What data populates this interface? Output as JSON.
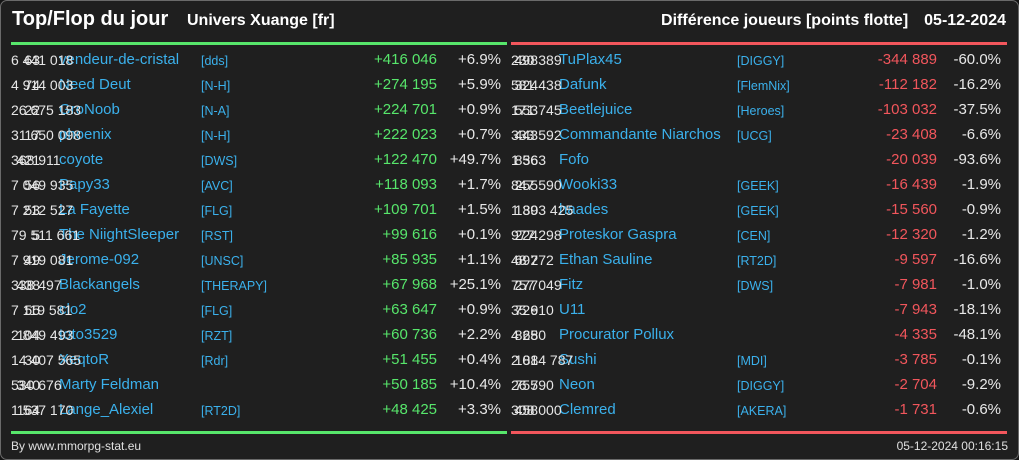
{
  "header": {
    "title": "Top/Flop du jour",
    "universe": "Univers Xuange [fr]",
    "metric": "Différence joueurs [points flotte]",
    "date": "05-12-2024"
  },
  "colors": {
    "top_accent": "#57e66b",
    "flop_accent": "#f2565c"
  },
  "top": [
    {
      "rank": "63",
      "name": "vendeur-de-cristal",
      "alliance": "[dds]",
      "points": "6 441 018",
      "diff": "+416 046",
      "pct": "+6.9%"
    },
    {
      "rank": "74",
      "name": "Need Deut",
      "alliance": "[N-H]",
      "points": "4 914 003",
      "diff": "+274 195",
      "pct": "+5.9%"
    },
    {
      "rank": "22",
      "name": "GroNoob",
      "alliance": "[N-A]",
      "points": "26 675 183",
      "diff": "+224 701",
      "pct": "+0.9%"
    },
    {
      "rank": "17",
      "name": "phoenix",
      "alliance": "[N-H]",
      "points": "31 650 098",
      "diff": "+222 023",
      "pct": "+0.7%"
    },
    {
      "rank": "421",
      "name": "coyote",
      "alliance": "[DWS]",
      "points": "368 911",
      "diff": "+122 470",
      "pct": "+49.7%"
    },
    {
      "rank": "56",
      "name": "Papy33",
      "alliance": "[AVC]",
      "points": "7 049 935",
      "diff": "+118 093",
      "pct": "+1.7%"
    },
    {
      "rank": "53",
      "name": "La Fayette",
      "alliance": "[FLG]",
      "points": "7 212 527",
      "diff": "+109 701",
      "pct": "+1.5%"
    },
    {
      "rank": "5",
      "name": "The NiightSleeper",
      "alliance": "[RST]",
      "points": "79 511 661",
      "diff": "+99 616",
      "pct": "+0.1%"
    },
    {
      "rank": "49",
      "name": "Jerome-092",
      "alliance": "[UNSC]",
      "points": "7 919 081",
      "diff": "+85 935",
      "pct": "+1.1%"
    },
    {
      "rank": "438",
      "name": "Blackangels",
      "alliance": "[THERAPY]",
      "points": "338 497",
      "diff": "+67 968",
      "pct": "+25.1%"
    },
    {
      "rank": "55",
      "name": "clo2",
      "alliance": "[FLG]",
      "points": "7 119 581",
      "diff": "+63 647",
      "pct": "+0.9%"
    },
    {
      "rank": "104",
      "name": "toto3529",
      "alliance": "[RZT]",
      "points": "2 849 493",
      "diff": "+60 736",
      "pct": "+2.2%"
    },
    {
      "rank": "30",
      "name": "XeqtoR",
      "alliance": "[Rdr]",
      "points": "14 407 565",
      "diff": "+51 455",
      "pct": "+0.4%"
    },
    {
      "rank": "340",
      "name": "Marty Feldman",
      "alliance": "",
      "points": "530 676",
      "diff": "+50 185",
      "pct": "+10.4%"
    },
    {
      "rank": "164",
      "name": "Lange_Alexiel",
      "alliance": "[RT2D]",
      "points": "1 537 170",
      "diff": "+48 425",
      "pct": "+3.3%"
    }
  ],
  "flop": [
    {
      "rank": "498",
      "name": "TuPlax45",
      "alliance": "[DIGGY]",
      "points": "230 389",
      "diff": "-344 889",
      "pct": "-60.0%"
    },
    {
      "rank": "324",
      "name": "Dafunk",
      "alliance": "[FlemNix]",
      "points": "581 438",
      "diff": "-112 182",
      "pct": "-16.2%"
    },
    {
      "rank": "553",
      "name": "Beetlejuice",
      "alliance": "[Heroes]",
      "points": "171 745",
      "diff": "-103 032",
      "pct": "-37.5%"
    },
    {
      "rank": "443",
      "name": "Commandante Niarchos",
      "alliance": "[UCG]",
      "points": "333 592",
      "diff": "-23 408",
      "pct": "-6.6%"
    },
    {
      "rank": "856",
      "name": "Fofo",
      "alliance": "",
      "points": "1 363",
      "diff": "-20 039",
      "pct": "-93.6%"
    },
    {
      "rank": "255",
      "name": "Wooki33",
      "alliance": "[GEEK]",
      "points": "847 590",
      "diff": "-16 439",
      "pct": "-1.9%"
    },
    {
      "rank": "139",
      "name": "haades",
      "alliance": "[GEEK]",
      "points": "1 803 425",
      "diff": "-15 560",
      "pct": "-0.9%"
    },
    {
      "rank": "224",
      "name": "Proteskor Gaspra",
      "alliance": "[CEN]",
      "points": "977 298",
      "diff": "-12 320",
      "pct": "-1.2%"
    },
    {
      "rank": "697",
      "name": "Ethan Sauline",
      "alliance": "[RT2D]",
      "points": "48 272",
      "diff": "-9 597",
      "pct": "-16.6%"
    },
    {
      "rank": "277",
      "name": "Fitz",
      "alliance": "[DWS]",
      "points": "757 049",
      "diff": "-7 981",
      "pct": "-1.0%"
    },
    {
      "rank": "726",
      "name": "U11",
      "alliance": "",
      "points": "35 910",
      "diff": "-7 943",
      "pct": "-18.1%"
    },
    {
      "rank": "825",
      "name": "Procurator Pollux",
      "alliance": "",
      "points": "4 680",
      "diff": "-4 335",
      "pct": "-48.1%"
    },
    {
      "rank": "101",
      "name": "Sushi",
      "alliance": "[MDI]",
      "points": "2 884 787",
      "diff": "-3 785",
      "pct": "-0.1%"
    },
    {
      "rank": "755",
      "name": "Neon",
      "alliance": "[DIGGY]",
      "points": "26 790",
      "diff": "-2 704",
      "pct": "-9.2%"
    },
    {
      "rank": "458",
      "name": "Clemred",
      "alliance": "[AKERA]",
      "points": "308 000",
      "diff": "-1 731",
      "pct": "-0.6%"
    }
  ],
  "footer": {
    "credit": "By www.mmorpg-stat.eu",
    "timestamp": "05-12-2024 00:16:15"
  }
}
